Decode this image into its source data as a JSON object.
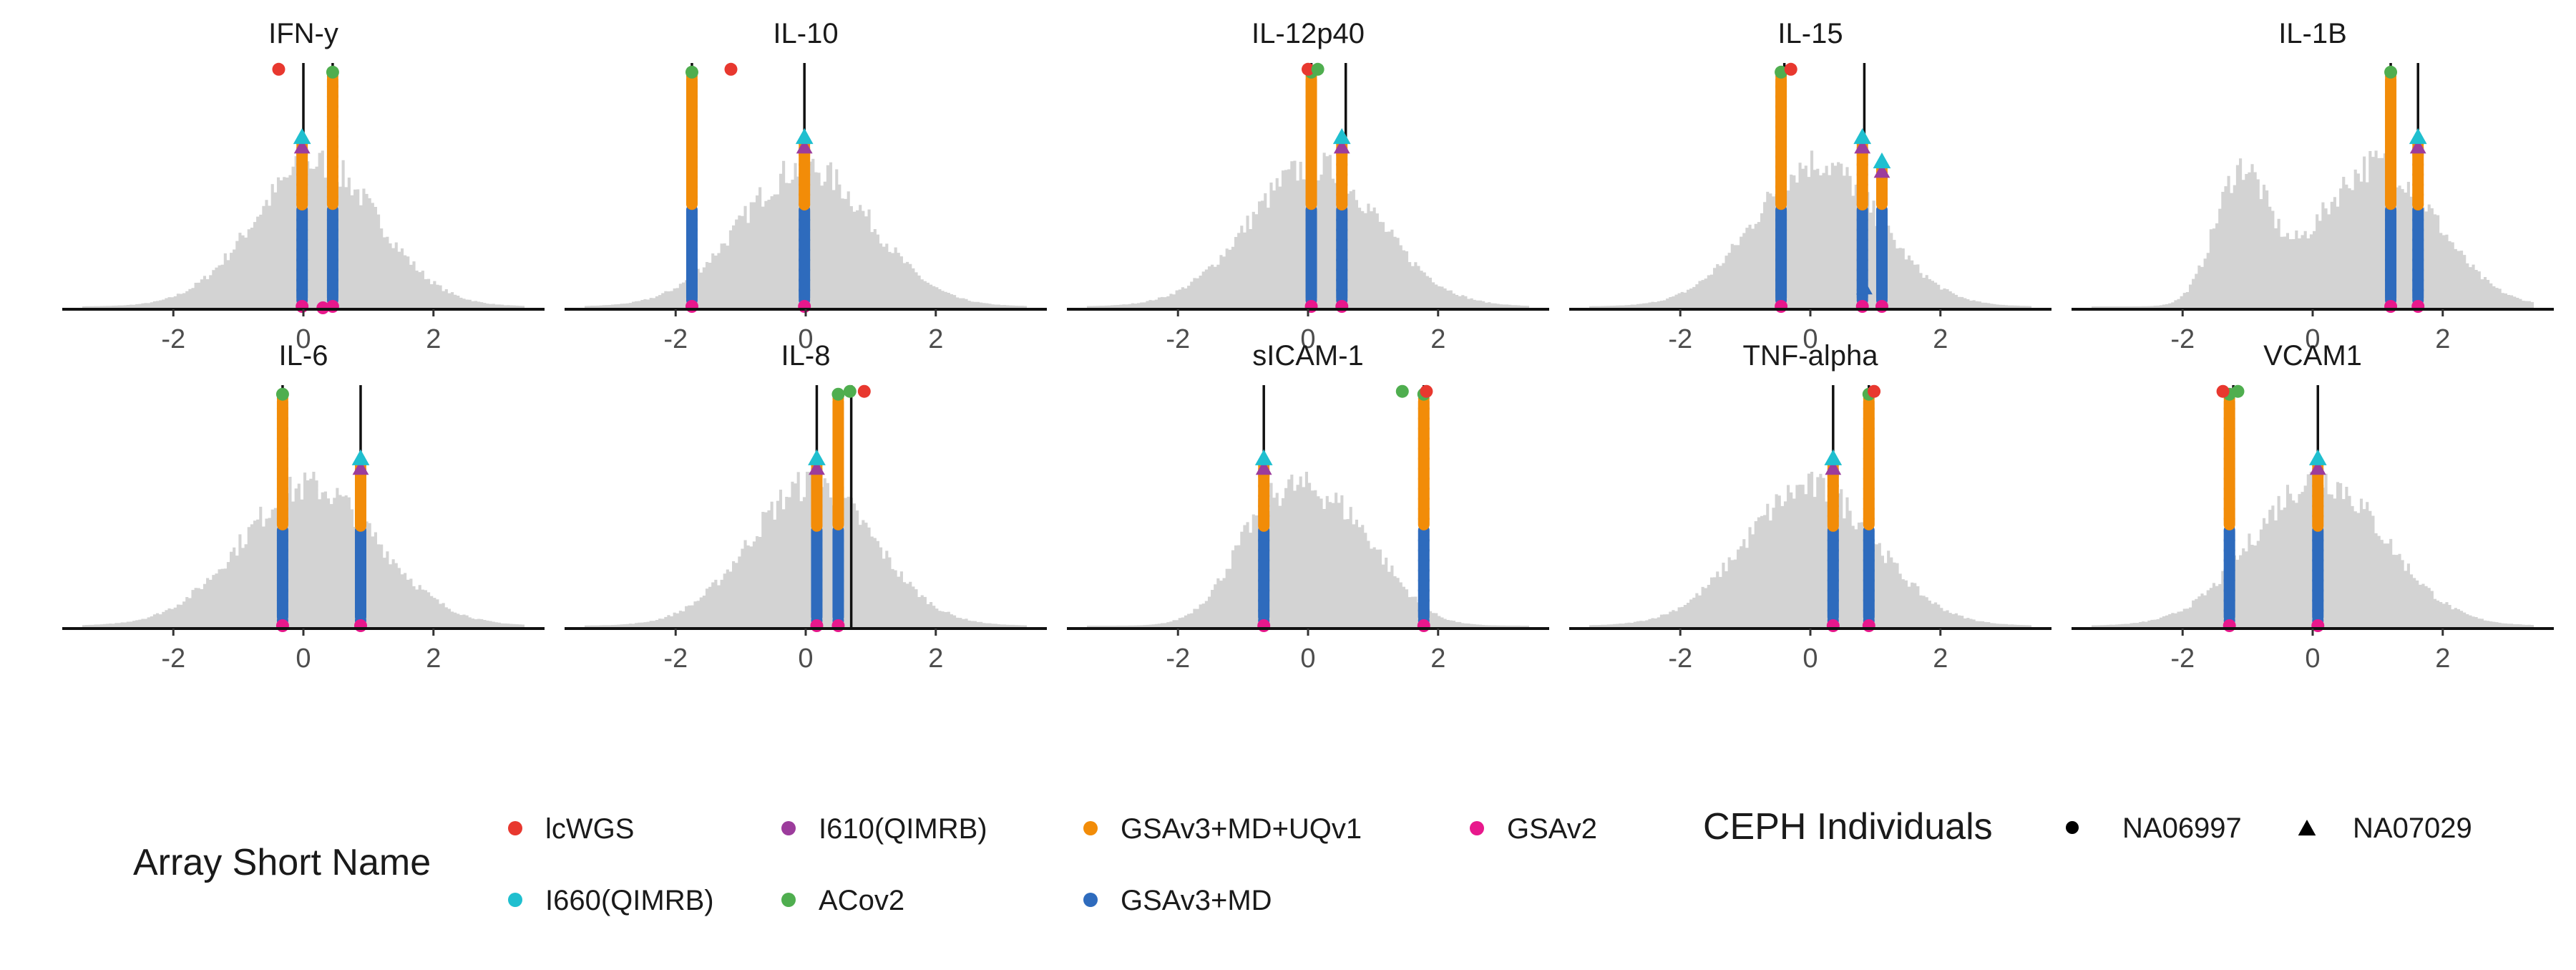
{
  "chart_data": {
    "type": "faceted-histogram-dotplot",
    "xlim": [
      -3.4,
      3.4
    ],
    "x_ticks": [
      -2,
      0,
      2
    ],
    "x_tick_labels": [
      "-2",
      "0",
      "2"
    ],
    "grid": false,
    "colors": {
      "histogram": "#d3d3d3",
      "lcWGS": "#e8382f",
      "I660(QIMRB)": "#1fbfcf",
      "I610(QIMRB)": "#9c3c9c",
      "ACov2": "#4fae4f",
      "GSAv3+MD+UQv1": "#f28c08",
      "GSAv3+MD": "#2e6bbd",
      "GSAv2": "#e8188c"
    },
    "panels": [
      {
        "title": "IFN-y",
        "bimodal": false,
        "peaks": [
          {
            "mu": 0.2,
            "sd": 0.95,
            "w": 1
          }
        ],
        "vlines": [
          0.0,
          0.45
        ],
        "stacks": [
          {
            "x": -0.02,
            "top": 0.7,
            "tri": true
          },
          {
            "x": 0.45,
            "top": 0.98,
            "tri": false
          }
        ],
        "extra_points": [
          {
            "x": -0.38,
            "level": 0.98,
            "array": "lcWGS",
            "shape": "circle"
          },
          {
            "x": 0.3,
            "level": 0.0,
            "array": "GSAv2",
            "shape": "circle"
          }
        ]
      },
      {
        "title": "IL-10",
        "bimodal": false,
        "peaks": [
          {
            "mu": 0.0,
            "sd": 1.0,
            "w": 1
          }
        ],
        "vlines": [
          -1.75,
          -0.02
        ],
        "stacks": [
          {
            "x": -1.75,
            "top": 0.98,
            "tri": false
          },
          {
            "x": -0.02,
            "top": 0.7,
            "tri": true
          }
        ],
        "extra_points": [
          {
            "x": -1.15,
            "level": 0.98,
            "array": "lcWGS",
            "shape": "circle"
          }
        ]
      },
      {
        "title": "IL-12p40",
        "bimodal": false,
        "peaks": [
          {
            "mu": 0.1,
            "sd": 1.0,
            "w": 1
          }
        ],
        "vlines": [
          0.05,
          0.58
        ],
        "stacks": [
          {
            "x": 0.05,
            "top": 0.98,
            "tri": false
          },
          {
            "x": 0.52,
            "top": 0.7,
            "tri": true
          }
        ],
        "extra_points": [
          {
            "x": 0.0,
            "level": 0.98,
            "array": "lcWGS",
            "shape": "circle"
          },
          {
            "x": 0.15,
            "level": 0.98,
            "array": "ACov2",
            "shape": "circle"
          }
        ]
      },
      {
        "title": "IL-15",
        "bimodal": false,
        "peaks": [
          {
            "mu": 0.1,
            "sd": 0.95,
            "w": 1
          }
        ],
        "vlines": [
          -0.4,
          0.83
        ],
        "stacks": [
          {
            "x": -0.45,
            "top": 0.98,
            "tri": false
          },
          {
            "x": 0.8,
            "top": 0.7,
            "tri": true
          },
          {
            "x": 1.1,
            "top": 0.6,
            "tri": true
          }
        ],
        "extra_points": [
          {
            "x": -0.3,
            "level": 0.98,
            "array": "lcWGS",
            "shape": "circle"
          },
          {
            "x": 0.83,
            "level": 0.08,
            "array": "GSAv3+MD",
            "shape": "triangle"
          }
        ]
      },
      {
        "title": "IL-1B",
        "bimodal": true,
        "peaks": [
          {
            "mu": -1.1,
            "sd": 0.4,
            "w": 0.55
          },
          {
            "mu": 1.0,
            "sd": 0.9,
            "w": 0.6
          }
        ],
        "vlines": [
          1.2,
          1.62
        ],
        "stacks": [
          {
            "x": 1.2,
            "top": 0.98,
            "tri": false
          },
          {
            "x": 1.62,
            "top": 0.7,
            "tri": true
          }
        ],
        "extra_points": []
      },
      {
        "title": "IL-6",
        "bimodal": false,
        "peaks": [
          {
            "mu": 0.1,
            "sd": 1.05,
            "w": 1
          }
        ],
        "vlines": [
          -0.32,
          0.88
        ],
        "stacks": [
          {
            "x": -0.32,
            "top": 0.98,
            "tri": false
          },
          {
            "x": 0.88,
            "top": 0.7,
            "tri": true
          }
        ],
        "extra_points": []
      },
      {
        "title": "IL-8",
        "bimodal": false,
        "peaks": [
          {
            "mu": 0.1,
            "sd": 0.95,
            "w": 1
          }
        ],
        "vlines": [
          0.17,
          0.7
        ],
        "stacks": [
          {
            "x": 0.17,
            "top": 0.7,
            "tri": true
          },
          {
            "x": 0.5,
            "top": 0.98,
            "tri": false
          }
        ],
        "extra_points": [
          {
            "x": 0.68,
            "level": 0.98,
            "array": "ACov2",
            "shape": "circle"
          },
          {
            "x": 0.9,
            "level": 0.98,
            "array": "lcWGS",
            "shape": "circle"
          }
        ]
      },
      {
        "title": "sICAM-1",
        "bimodal": true,
        "peaks": [
          {
            "mu": -0.6,
            "sd": 0.6,
            "w": 0.75
          },
          {
            "mu": 0.5,
            "sd": 0.7,
            "w": 0.8
          }
        ],
        "vlines": [
          -0.68,
          1.78
        ],
        "stacks": [
          {
            "x": -0.68,
            "top": 0.7,
            "tri": true
          },
          {
            "x": 1.78,
            "top": 0.98,
            "tri": false
          }
        ],
        "extra_points": [
          {
            "x": 1.45,
            "level": 0.98,
            "array": "ACov2",
            "shape": "circle"
          },
          {
            "x": 1.82,
            "level": 0.98,
            "array": "lcWGS",
            "shape": "circle"
          }
        ]
      },
      {
        "title": "TNF-alpha",
        "bimodal": false,
        "peaks": [
          {
            "mu": 0.0,
            "sd": 1.0,
            "w": 1
          }
        ],
        "vlines": [
          0.35,
          0.9
        ],
        "stacks": [
          {
            "x": 0.35,
            "top": 0.7,
            "tri": true
          },
          {
            "x": 0.9,
            "top": 0.98,
            "tri": false
          }
        ],
        "extra_points": [
          {
            "x": 0.98,
            "level": 0.98,
            "array": "lcWGS",
            "shape": "circle"
          }
        ]
      },
      {
        "title": "VCAM1",
        "bimodal": false,
        "peaks": [
          {
            "mu": 0.1,
            "sd": 1.0,
            "w": 1
          }
        ],
        "vlines": [
          -1.22,
          0.08
        ],
        "stacks": [
          {
            "x": -1.28,
            "top": 0.98,
            "tri": false
          },
          {
            "x": 0.08,
            "top": 0.7,
            "tri": true
          }
        ],
        "extra_points": [
          {
            "x": -1.38,
            "level": 0.98,
            "array": "lcWGS",
            "shape": "circle"
          },
          {
            "x": -1.15,
            "level": 0.98,
            "array": "ACov2",
            "shape": "circle"
          }
        ]
      }
    ],
    "legends": [
      {
        "title": "Array Short Name",
        "entries": [
          {
            "label": "lcWGS",
            "color": "#e8382f"
          },
          {
            "label": "I610(QIMRB)",
            "color": "#9c3c9c"
          },
          {
            "label": "GSAv3+MD+UQv1",
            "color": "#f28c08"
          },
          {
            "label": "GSAv2",
            "color": "#e8188c"
          },
          {
            "label": "I660(QIMRB)",
            "color": "#1fbfcf"
          },
          {
            "label": "ACov2",
            "color": "#4fae4f"
          },
          {
            "label": "GSAv3+MD",
            "color": "#2e6bbd"
          }
        ]
      },
      {
        "title": "CEPH Individuals",
        "entries": [
          {
            "label": "NA06997",
            "shape": "circle"
          },
          {
            "label": "NA07029",
            "shape": "triangle"
          }
        ]
      }
    ]
  }
}
